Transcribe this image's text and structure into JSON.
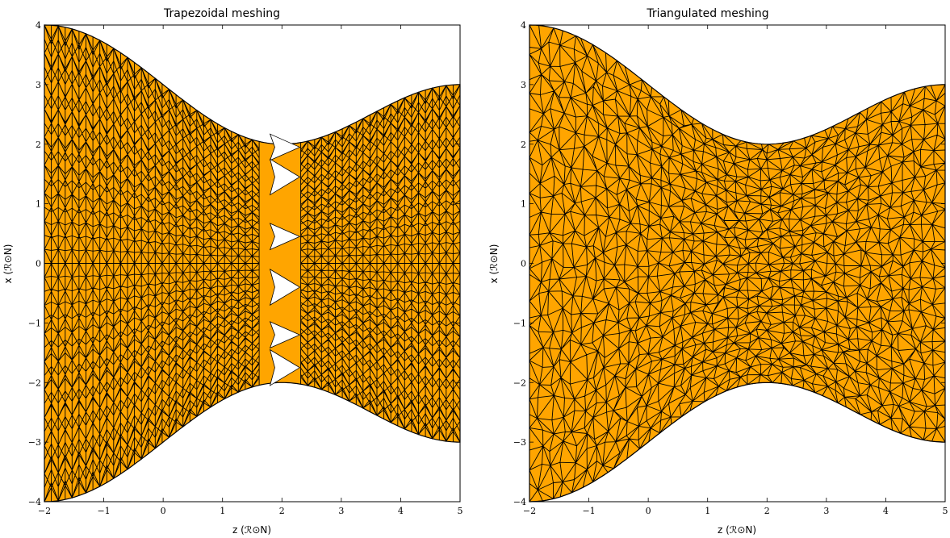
{
  "chart_data": [
    {
      "type": "mesh",
      "title": "Trapezoidal meshing",
      "xlabel": "z (ℛ⊙N)",
      "ylabel": "x (ℛ⊙N)",
      "xlim": [
        -2,
        5
      ],
      "ylim": [
        -4,
        4
      ],
      "xticks": [
        -2,
        -1,
        0,
        1,
        2,
        3,
        4,
        5
      ],
      "yticks": [
        -4,
        -3,
        -2,
        -1,
        0,
        1,
        2,
        3,
        4
      ],
      "xtick_labels": [
        "−2",
        "−1",
        "0",
        "1",
        "2",
        "3",
        "4",
        "5"
      ],
      "ytick_labels": [
        "−4",
        "−3",
        "−2",
        "−1",
        "0",
        "1",
        "2",
        "3",
        "4"
      ],
      "fill_color": "#ffa500",
      "edge_color": "#000000",
      "mesh_style": "trapezoid",
      "gap_near_z": 2
    },
    {
      "type": "mesh",
      "title": "Triangulated meshing",
      "xlabel": "z (ℛ⊙N)",
      "ylabel": "x (ℛ⊙N)",
      "xlim": [
        -2,
        5
      ],
      "ylim": [
        -4,
        4
      ],
      "xticks": [
        -2,
        -1,
        0,
        1,
        2,
        3,
        4,
        5
      ],
      "yticks": [
        -4,
        -3,
        -2,
        -1,
        0,
        1,
        2,
        3,
        4
      ],
      "xtick_labels": [
        "−2",
        "−1",
        "0",
        "1",
        "2",
        "3",
        "4",
        "5"
      ],
      "ytick_labels": [
        "−4",
        "−3",
        "−2",
        "−1",
        "0",
        "1",
        "2",
        "3",
        "4"
      ],
      "fill_color": "#ffa500",
      "edge_color": "#000000",
      "mesh_style": "triangle"
    }
  ]
}
